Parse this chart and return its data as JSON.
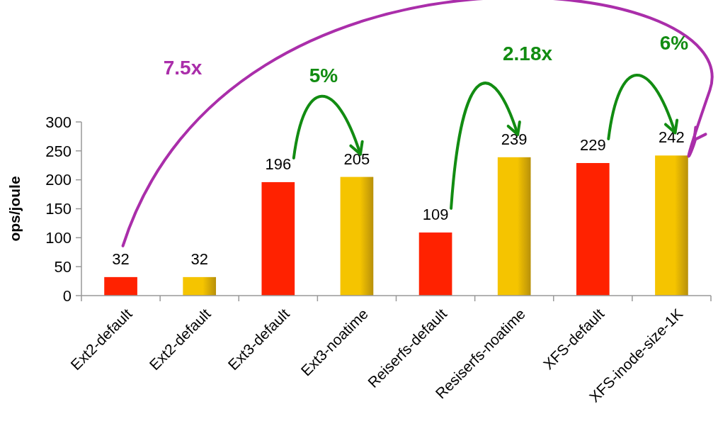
{
  "chart_data": {
    "type": "bar",
    "ylabel": "ops/joule",
    "categories": [
      "Ext2-default",
      "Ext2-default",
      "Ext3-default",
      "Ext3-noatime",
      "Reiserfs-default",
      "Resiserfs-noatime",
      "XFS-default",
      "XFS-inode-size-1K"
    ],
    "values": [
      32,
      32,
      196,
      205,
      109,
      239,
      229,
      242
    ],
    "colors": [
      "#ff2200",
      "#f5c400",
      "#ff2200",
      "#f5c400",
      "#ff2200",
      "#f5c400",
      "#ff2200",
      "#f5c400"
    ],
    "data_labels": true,
    "ylim": [
      0,
      300
    ],
    "yticks": [
      0,
      50,
      100,
      150,
      200,
      250,
      300
    ],
    "grid": false,
    "annotations": [
      "7.5x",
      "5%",
      "2.18x",
      "6%"
    ]
  }
}
